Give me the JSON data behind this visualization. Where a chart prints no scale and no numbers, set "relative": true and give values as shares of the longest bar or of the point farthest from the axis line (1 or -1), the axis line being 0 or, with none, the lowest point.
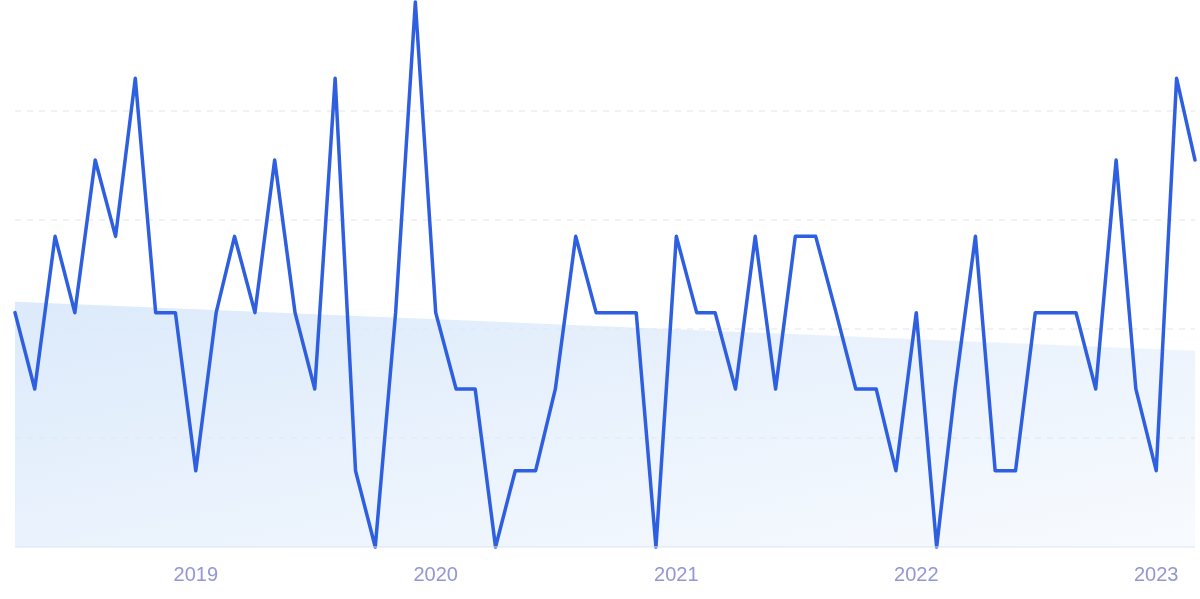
{
  "chart_data": {
    "type": "line",
    "relative": true,
    "grid": "y",
    "x": [
      "2018-04",
      "2018-05",
      "2018-06",
      "2018-07",
      "2018-08",
      "2018-09",
      "2018-10",
      "2018-11",
      "2018-12",
      "2019-01",
      "2019-02",
      "2019-03",
      "2019-04",
      "2019-05",
      "2019-06",
      "2019-07",
      "2019-08",
      "2019-09",
      "2019-10",
      "2019-11",
      "2019-12",
      "2020-01",
      "2020-02",
      "2020-03",
      "2020-04",
      "2020-05",
      "2020-06",
      "2020-07",
      "2020-08",
      "2020-09",
      "2020-10",
      "2020-11",
      "2020-12",
      "2021-01",
      "2021-02",
      "2021-03",
      "2021-04",
      "2021-05",
      "2021-06",
      "2021-07",
      "2021-08",
      "2021-09",
      "2021-10",
      "2021-11",
      "2021-12",
      "2022-01",
      "2022-02",
      "2022-03",
      "2022-04",
      "2022-05",
      "2022-06",
      "2022-07",
      "2022-08",
      "2022-09",
      "2022-10",
      "2022-11",
      "2022-12",
      "2023-01",
      "2023-02",
      "2023-03"
    ],
    "xlim": [
      "2018-04",
      "2023-03"
    ],
    "xticks": [
      "2019",
      "2020",
      "2021",
      "2022",
      "2023"
    ],
    "series": [
      {
        "type": "area",
        "color": "#dceafb",
        "x": [
          "2018-04",
          "2023-03"
        ],
        "values": [
          0.45,
          0.36
        ]
      },
      {
        "color": "#2e5fe0",
        "values": [
          0.43,
          0.29,
          0.57,
          0.43,
          0.71,
          0.57,
          0.86,
          0.43,
          0.43,
          0.14,
          0.43,
          0.57,
          0.43,
          0.71,
          0.43,
          0.29,
          0.86,
          0.14,
          0,
          0.43,
          1,
          0.43,
          0.29,
          0.29,
          0,
          0.14,
          0.14,
          0.29,
          0.57,
          0.43,
          0.43,
          0.43,
          0,
          0.57,
          0.43,
          0.43,
          0.29,
          0.57,
          0.29,
          0.57,
          0.57,
          0.43,
          0.29,
          0.29,
          0.14,
          0.43,
          0,
          0.29,
          0.57,
          0.14,
          0.14,
          0.43,
          0.43,
          0.43,
          0.29,
          0.71,
          0.29,
          0.14,
          0.86,
          0.71
        ]
      }
    ]
  }
}
